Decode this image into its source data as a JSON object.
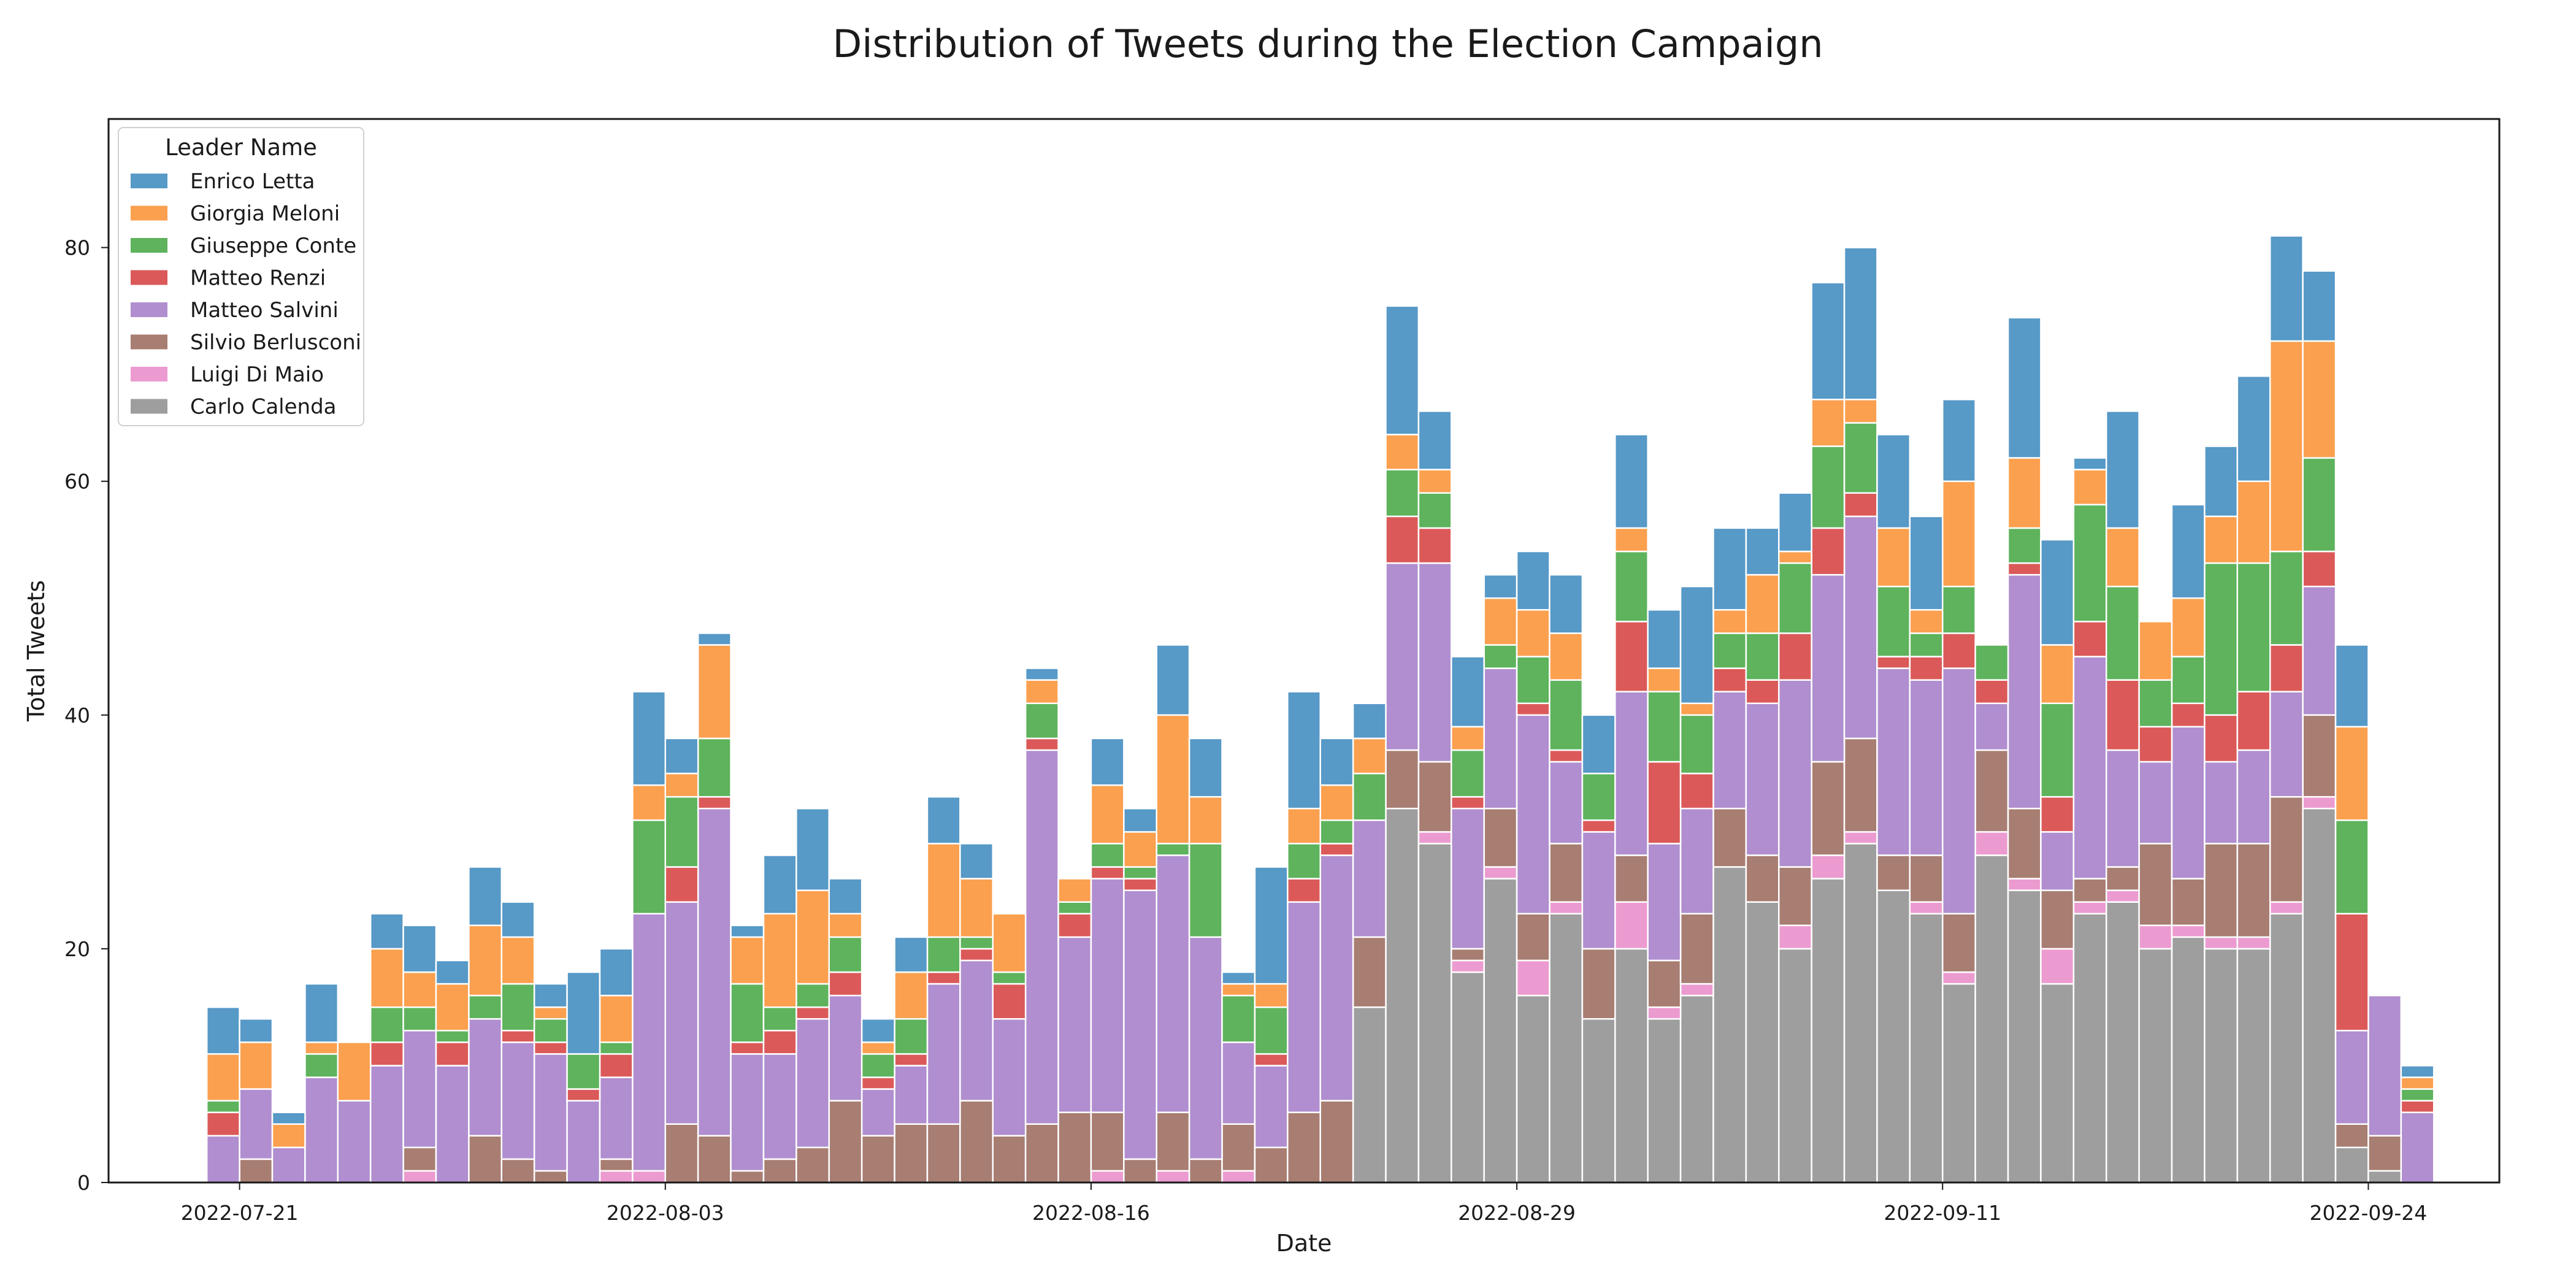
{
  "chart_data": {
    "type": "bar",
    "stacked": true,
    "title": "Distribution of Tweets during the Election Campaign",
    "xlabel": "Date",
    "ylabel": "Total Tweets",
    "ylim": [
      0,
      91
    ],
    "yticks": [
      0,
      20,
      40,
      60,
      80
    ],
    "xlim": [
      "2022-07-17",
      "2022-09-28"
    ],
    "xticks": [
      "2022-07-21",
      "2022-08-03",
      "2022-08-16",
      "2022-08-29",
      "2022-09-11",
      "2022-09-24"
    ],
    "grid": false,
    "legend": {
      "title": "Leader Name",
      "placement": "top-left"
    },
    "dates": [
      "2022-07-20",
      "2022-07-21",
      "2022-07-22",
      "2022-07-23",
      "2022-07-24",
      "2022-07-25",
      "2022-07-26",
      "2022-07-27",
      "2022-07-28",
      "2022-07-29",
      "2022-07-30",
      "2022-07-31",
      "2022-08-01",
      "2022-08-02",
      "2022-08-03",
      "2022-08-04",
      "2022-08-05",
      "2022-08-06",
      "2022-08-07",
      "2022-08-08",
      "2022-08-09",
      "2022-08-10",
      "2022-08-11",
      "2022-08-12",
      "2022-08-13",
      "2022-08-14",
      "2022-08-15",
      "2022-08-16",
      "2022-08-17",
      "2022-08-18",
      "2022-08-19",
      "2022-08-20",
      "2022-08-21",
      "2022-08-22",
      "2022-08-23",
      "2022-08-24",
      "2022-08-25",
      "2022-08-26",
      "2022-08-27",
      "2022-08-28",
      "2022-08-29",
      "2022-08-30",
      "2022-08-31",
      "2022-09-01",
      "2022-09-02",
      "2022-09-03",
      "2022-09-04",
      "2022-09-05",
      "2022-09-06",
      "2022-09-07",
      "2022-09-08",
      "2022-09-09",
      "2022-09-10",
      "2022-09-11",
      "2022-09-12",
      "2022-09-13",
      "2022-09-14",
      "2022-09-15",
      "2022-09-16",
      "2022-09-17",
      "2022-09-18",
      "2022-09-19",
      "2022-09-20",
      "2022-09-21",
      "2022-09-22",
      "2022-09-23",
      "2022-09-24",
      "2022-09-25"
    ],
    "series": [
      {
        "name": "Carlo Calenda",
        "color": "#9e9e9e",
        "values": [
          0,
          0,
          0,
          0,
          0,
          0,
          0,
          0,
          0,
          0,
          0,
          0,
          0,
          0,
          0,
          0,
          0,
          0,
          0,
          0,
          0,
          0,
          0,
          0,
          0,
          0,
          0,
          0,
          0,
          0,
          0,
          0,
          0,
          0,
          0,
          15,
          32,
          29,
          18,
          26,
          16,
          23,
          14,
          20,
          14,
          16,
          27,
          24,
          20,
          26,
          29,
          25,
          23,
          17,
          28,
          25,
          17,
          23,
          24,
          20,
          21,
          20,
          20,
          23,
          32,
          3,
          1,
          0
        ]
      },
      {
        "name": "Luigi Di Maio",
        "color": "#ec9bd0",
        "values": [
          0,
          0,
          0,
          0,
          0,
          0,
          1,
          0,
          0,
          0,
          0,
          0,
          1,
          1,
          0,
          0,
          0,
          0,
          0,
          0,
          0,
          0,
          0,
          0,
          0,
          0,
          0,
          1,
          0,
          1,
          0,
          1,
          0,
          0,
          0,
          0,
          0,
          1,
          1,
          1,
          3,
          1,
          0,
          4,
          1,
          1,
          0,
          0,
          2,
          2,
          1,
          0,
          1,
          1,
          2,
          1,
          3,
          1,
          1,
          2,
          1,
          1,
          1,
          1,
          1,
          0,
          0,
          0
        ]
      },
      {
        "name": "Silvio Berlusconi",
        "color": "#a87d72",
        "values": [
          0,
          2,
          0,
          0,
          0,
          0,
          2,
          0,
          4,
          2,
          1,
          0,
          1,
          0,
          5,
          4,
          1,
          2,
          3,
          7,
          4,
          5,
          5,
          7,
          4,
          5,
          6,
          5,
          2,
          5,
          2,
          4,
          3,
          6,
          7,
          6,
          5,
          6,
          1,
          5,
          4,
          5,
          6,
          4,
          4,
          6,
          5,
          4,
          5,
          8,
          8,
          3,
          4,
          5,
          7,
          6,
          5,
          2,
          2,
          7,
          4,
          8,
          8,
          9,
          7,
          2,
          3,
          0
        ]
      },
      {
        "name": "Matteo Salvini",
        "color": "#b08ecf",
        "values": [
          4,
          6,
          3,
          9,
          7,
          10,
          10,
          10,
          10,
          10,
          10,
          7,
          7,
          22,
          19,
          28,
          10,
          9,
          11,
          9,
          4,
          5,
          12,
          12,
          10,
          32,
          15,
          20,
          23,
          22,
          19,
          7,
          7,
          18,
          21,
          10,
          16,
          17,
          12,
          12,
          17,
          7,
          10,
          14,
          10,
          9,
          10,
          13,
          16,
          16,
          19,
          16,
          15,
          21,
          4,
          20,
          5,
          19,
          10,
          7,
          13,
          7,
          8,
          9,
          11,
          8,
          12,
          6
        ]
      },
      {
        "name": "Matteo Renzi",
        "color": "#db5a59",
        "values": [
          2,
          0,
          0,
          0,
          0,
          2,
          0,
          2,
          0,
          1,
          1,
          1,
          2,
          0,
          3,
          1,
          1,
          2,
          1,
          2,
          1,
          1,
          1,
          1,
          3,
          1,
          2,
          1,
          1,
          0,
          0,
          0,
          1,
          2,
          1,
          0,
          4,
          3,
          1,
          0,
          1,
          1,
          1,
          6,
          7,
          3,
          2,
          2,
          4,
          4,
          2,
          1,
          2,
          3,
          2,
          1,
          3,
          3,
          6,
          3,
          2,
          4,
          5,
          4,
          3,
          10,
          0,
          1
        ]
      },
      {
        "name": "Giuseppe Conte",
        "color": "#5eb35c",
        "values": [
          1,
          0,
          0,
          2,
          0,
          3,
          2,
          1,
          2,
          4,
          2,
          3,
          1,
          8,
          6,
          5,
          5,
          2,
          2,
          3,
          2,
          3,
          3,
          1,
          1,
          3,
          1,
          2,
          1,
          1,
          8,
          4,
          4,
          3,
          2,
          4,
          4,
          3,
          4,
          2,
          4,
          6,
          4,
          6,
          6,
          5,
          3,
          4,
          6,
          7,
          6,
          6,
          2,
          4,
          3,
          3,
          8,
          10,
          8,
          4,
          4,
          13,
          11,
          8,
          8,
          8,
          0,
          1
        ]
      },
      {
        "name": "Giorgia Meloni",
        "color": "#fba04f",
        "values": [
          4,
          4,
          2,
          1,
          5,
          5,
          3,
          4,
          6,
          4,
          1,
          0,
          4,
          3,
          2,
          8,
          4,
          8,
          8,
          2,
          1,
          4,
          8,
          5,
          5,
          2,
          2,
          5,
          3,
          11,
          4,
          1,
          2,
          3,
          3,
          3,
          3,
          2,
          2,
          4,
          4,
          4,
          0,
          2,
          2,
          1,
          2,
          5,
          1,
          4,
          2,
          5,
          2,
          9,
          0,
          6,
          5,
          3,
          5,
          5,
          5,
          4,
          7,
          18,
          10,
          8,
          0,
          1
        ]
      },
      {
        "name": "Enrico Letta",
        "color": "#5799c7",
        "values": [
          4,
          2,
          1,
          5,
          0,
          3,
          4,
          2,
          5,
          3,
          2,
          7,
          4,
          8,
          3,
          1,
          1,
          5,
          7,
          3,
          2,
          3,
          4,
          3,
          0,
          1,
          0,
          4,
          2,
          6,
          5,
          1,
          10,
          10,
          4,
          3,
          11,
          5,
          6,
          2,
          5,
          5,
          5,
          8,
          5,
          10,
          7,
          4,
          5,
          10,
          13,
          8,
          8,
          7,
          0,
          12,
          9,
          1,
          10,
          0,
          8,
          6,
          9,
          9,
          6,
          7,
          0,
          1
        ]
      }
    ]
  }
}
